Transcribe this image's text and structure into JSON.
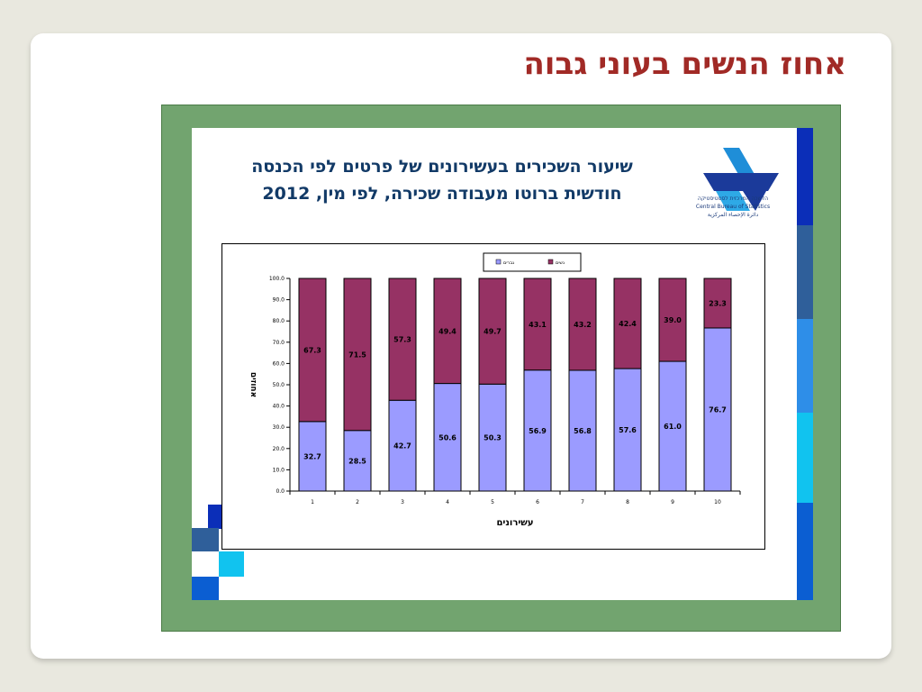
{
  "slide": {
    "title": "אחוז הנשים בעוני גבוה"
  },
  "logo": {
    "line1": "הלשכה המרכזית לסטטיסטיקה",
    "line2": "Central Bureau of Statistics",
    "line3": "دائرة الإحصاء المركزية"
  },
  "chart_title_lines": [
    "שיעור השכירים בעשירונים של פרטים לפי הכנסה",
    "חודשית ברוטו מעבודה שכירה, לפי מין, 2012"
  ],
  "colors": {
    "women": "#963264",
    "men": "#9b9bff",
    "title": "#a12a26",
    "frame": "#72a46f"
  },
  "chart_data": {
    "type": "bar",
    "stacked": true,
    "categories": [
      "1",
      "2",
      "3",
      "4",
      "5",
      "6",
      "7",
      "8",
      "9",
      "10"
    ],
    "series": [
      {
        "name": "גברים",
        "color": "#9b9bff",
        "values": [
          32.7,
          28.5,
          42.7,
          50.6,
          50.3,
          56.9,
          56.8,
          57.6,
          61.0,
          76.7
        ]
      },
      {
        "name": "נשים",
        "color": "#963264",
        "values": [
          67.3,
          71.5,
          57.3,
          49.4,
          49.7,
          43.1,
          43.2,
          42.4,
          39.0,
          23.3
        ]
      }
    ],
    "xlabel": "עשירונים",
    "ylabel": "אחוזים",
    "ylim": [
      0,
      100
    ],
    "yticks": [
      "0.0",
      "10.0",
      "20.0",
      "30.0",
      "40.0",
      "50.0",
      "60.0",
      "70.0",
      "80.0",
      "90.0",
      "100.0"
    ],
    "legend_position": "top-center",
    "grid": false
  }
}
